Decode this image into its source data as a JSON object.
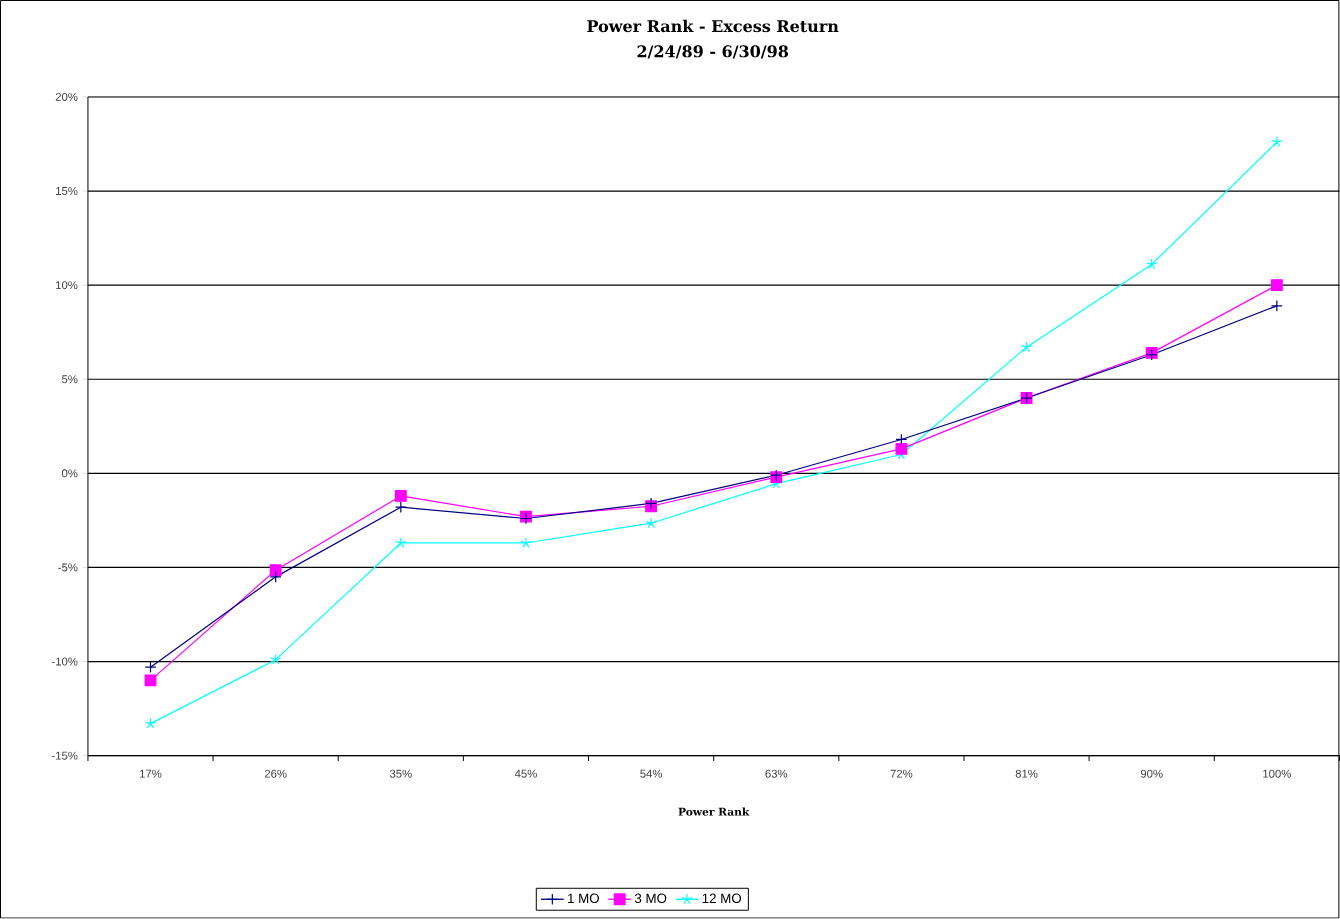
{
  "chart_data": {
    "type": "line",
    "title": "Power Rank - Excess Return",
    "subtitle": "2/24/89 - 6/30/98",
    "xlabel": "Power Rank",
    "categories": [
      "17%",
      "26%",
      "35%",
      "45%",
      "54%",
      "63%",
      "72%",
      "81%",
      "90%",
      "100%"
    ],
    "series": [
      {
        "name": "1 MO",
        "color": "#000080",
        "marker": "cross",
        "values": [
          -10.3,
          -5.5,
          -1.8,
          -2.4,
          -1.6,
          -0.1,
          1.8,
          4.0,
          6.3,
          8.9
        ]
      },
      {
        "name": "3 MO",
        "color": "#ff00ff",
        "marker": "square",
        "values": [
          -11.0,
          -5.15,
          -1.2,
          -2.3,
          -1.75,
          -0.2,
          1.3,
          4.0,
          6.4,
          10.0
        ]
      },
      {
        "name": "12 MO",
        "color": "#00ffff",
        "marker": "cross",
        "values": [
          -13.3,
          -9.9,
          -3.7,
          -3.7,
          -2.65,
          -0.55,
          1.0,
          6.7,
          11.1,
          17.6
        ]
      }
    ],
    "ylim": [
      -15,
      20
    ],
    "yticks": [
      {
        "value": -15,
        "label": "-15%"
      },
      {
        "value": -10,
        "label": "-10%"
      },
      {
        "value": -5,
        "label": "-5%"
      },
      {
        "value": 0,
        "label": "0%"
      },
      {
        "value": 5,
        "label": "5%"
      },
      {
        "value": 10,
        "label": "10%"
      },
      {
        "value": 15,
        "label": "15%"
      },
      {
        "value": 20,
        "label": "20%"
      }
    ],
    "grid": "y",
    "legend": "bottom",
    "line_style": "solid"
  }
}
